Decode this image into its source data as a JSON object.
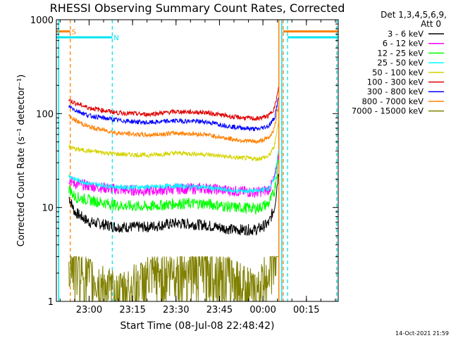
{
  "chart_data": {
    "type": "line",
    "title": "RHESSI Observing Summary Count Rates, Corrected",
    "xlabel": "Start Time (08-Jul-08 22:48:42)",
    "ylabel": "Corrected Count Rate (s⁻¹ detector⁻¹)",
    "y_scale": "log",
    "ylim": [
      1,
      1000
    ],
    "xlim": [
      "22:48:42",
      "00:26:00"
    ],
    "x_ticks": [
      "23:00",
      "23:15",
      "23:30",
      "23:45",
      "00:00",
      "00:15"
    ],
    "y_ticks": [
      "1",
      "10",
      "100",
      "1000"
    ],
    "legend_header": [
      "Det 1,3,4,5,6,9,",
      "Att 0"
    ],
    "legend_position": "right",
    "footer": "14-Oct-2021 21:59",
    "colors": {
      "frame": "#000000",
      "background": "#ffffff",
      "flag_s": "#ff8000",
      "flag_n": "#00e5ee"
    },
    "flags": [
      {
        "label": "S",
        "color": "#ff8000",
        "level": 750,
        "segments": [
          [
            "22:48:42",
            "22:53:30"
          ],
          [
            "00:07:00",
            "00:26:00"
          ]
        ],
        "boundaries": [
          "22:53:30",
          "00:07:00",
          "00:25:30"
        ]
      },
      {
        "label": "N",
        "color": "#00e5ee",
        "level": 650,
        "segments": [
          [
            "22:48:42",
            "23:08:00"
          ],
          [
            "00:08:30",
            "00:26:00"
          ]
        ],
        "boundaries": [
          "23:08:00",
          "00:08:30",
          "00:25:30"
        ]
      }
    ],
    "x": [
      "22:53",
      "22:55",
      "23:00",
      "23:10",
      "23:20",
      "23:30",
      "23:40",
      "23:50",
      "23:58",
      "00:02",
      "00:04",
      "00:05:30"
    ],
    "series": [
      {
        "name": "3 - 6 keV",
        "color": "#000000",
        "values": [
          13,
          9,
          7,
          6.2,
          6.2,
          6.8,
          6.5,
          5.8,
          5.8,
          6.8,
          10,
          25
        ]
      },
      {
        "name": "6 - 12 keV",
        "color": "#ff00ff",
        "values": [
          20,
          18,
          17,
          15.5,
          15,
          15.8,
          16,
          15,
          14.5,
          15.5,
          20,
          40
        ]
      },
      {
        "name": "12 - 25 keV",
        "color": "#00ff00",
        "values": [
          16,
          13,
          12,
          10.5,
          10.2,
          11,
          11,
          10,
          9.8,
          11,
          15,
          35
        ]
      },
      {
        "name": "25 - 50 keV",
        "color": "#00ffff",
        "values": [
          22,
          20,
          18,
          16.5,
          16.5,
          17,
          16.5,
          15,
          15,
          16,
          20,
          45
        ]
      },
      {
        "name": "50 - 100 keV",
        "color": "#d4d400",
        "values": [
          45,
          42,
          40,
          37,
          36,
          38,
          37,
          34,
          33,
          35,
          45,
          90
        ]
      },
      {
        "name": "100 - 300 keV",
        "color": "#e00000",
        "values": [
          140,
          130,
          115,
          102,
          98,
          105,
          103,
          92,
          88,
          95,
          115,
          190
        ]
      },
      {
        "name": "300 - 800 keV",
        "color": "#0000ff",
        "values": [
          120,
          110,
          95,
          85,
          80,
          84,
          82,
          72,
          68,
          74,
          90,
          155
        ]
      },
      {
        "name": "800 - 7000 keV",
        "color": "#ff8000",
        "values": [
          95,
          85,
          72,
          62,
          59,
          62,
          60,
          53,
          50,
          55,
          70,
          130
        ]
      },
      {
        "name": "7000 - 15000 keV",
        "color": "#808000",
        "values": [
          2.5,
          2,
          1.5,
          1,
          1.5,
          1.8,
          2,
          1.5,
          1,
          2,
          3,
          6
        ]
      }
    ]
  }
}
